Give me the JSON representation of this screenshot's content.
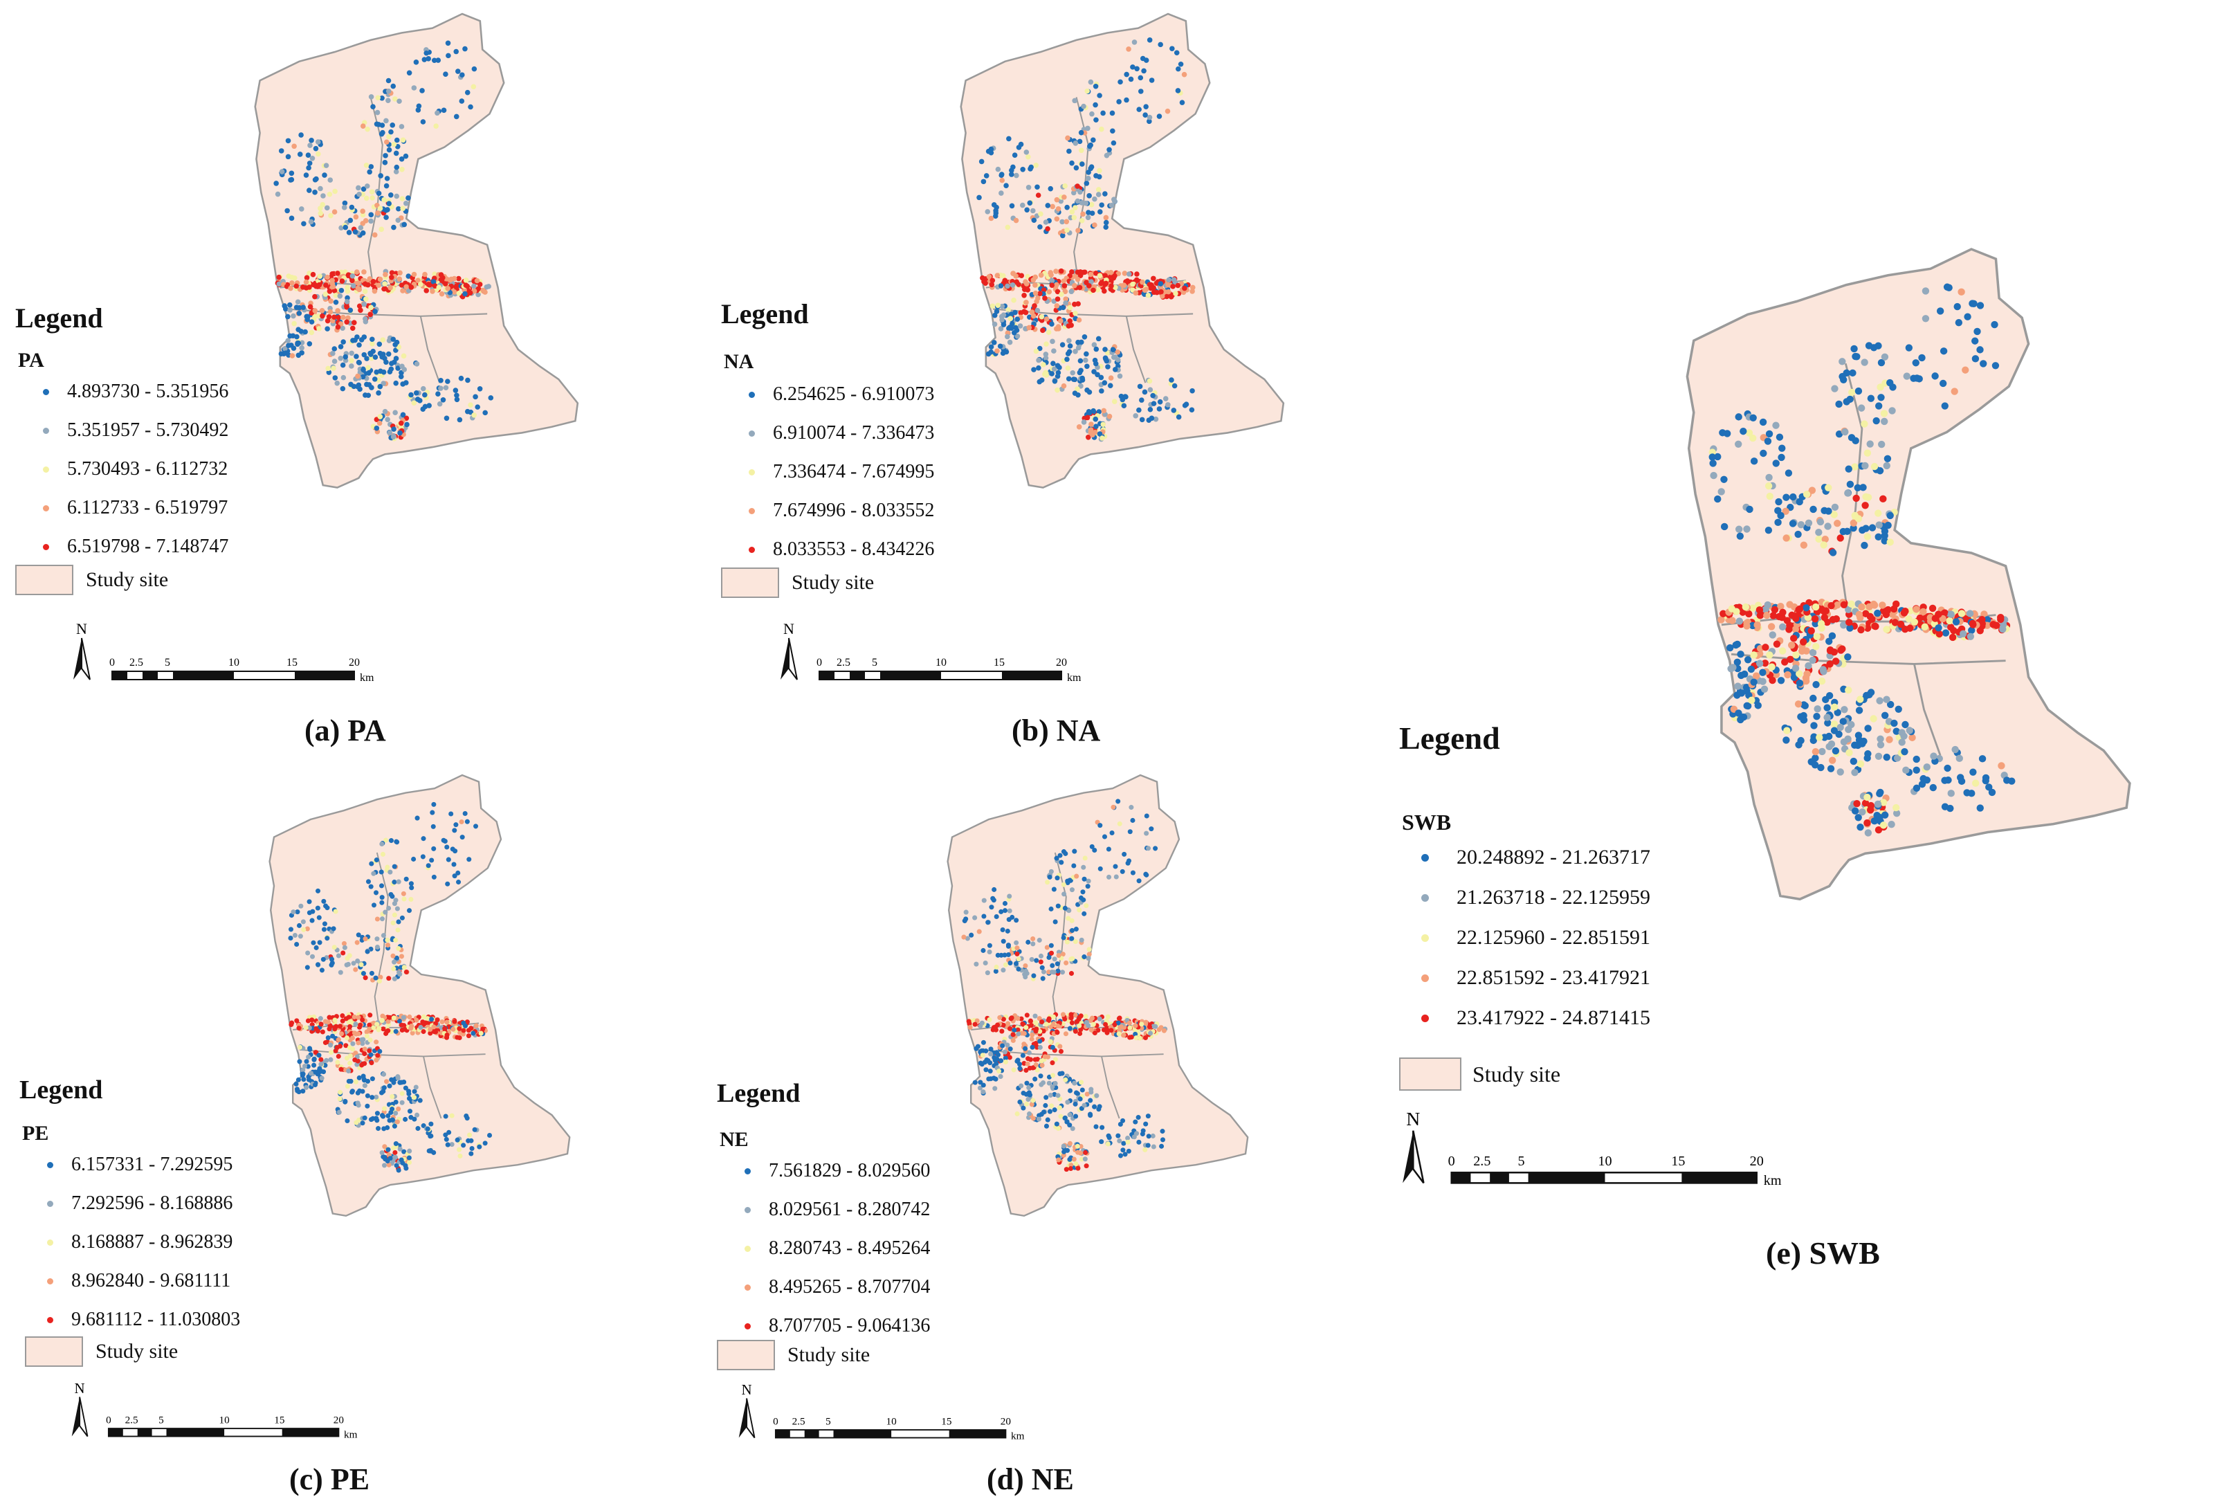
{
  "site_label": "Study site",
  "legend_title": "Legend",
  "north_label": "N",
  "scale": {
    "ticks": [
      "0",
      "2.5",
      "5",
      "10",
      "15",
      "20"
    ],
    "unit": "km"
  },
  "colors": {
    "site_fill": "#fbe6dc",
    "site_outline": "#9a9a9a",
    "class": [
      "#1f6fb8",
      "#93a9bc",
      "#f4f1a4",
      "#f4a07a",
      "#e8231f"
    ]
  },
  "panels": [
    {
      "id": "a",
      "caption": "(a) PA",
      "variable": "PA",
      "classes": [
        "4.893730 - 5.351956",
        "5.351957 - 5.730492",
        "5.730493 - 6.112732",
        "6.112733 - 6.519797",
        "6.519798 - 7.148747"
      ]
    },
    {
      "id": "b",
      "caption": "(b) NA",
      "variable": "NA",
      "classes": [
        "6.254625 - 6.910073",
        "6.910074 - 7.336473",
        "7.336474 - 7.674995",
        "7.674996 - 8.033552",
        "8.033553 - 8.434226"
      ]
    },
    {
      "id": "c",
      "caption": "(c) PE",
      "variable": "PE",
      "classes": [
        "6.157331 - 7.292595",
        "7.292596 - 8.168886",
        "8.168887 - 8.962839",
        "8.962840 - 9.681111",
        "9.681112 - 11.030803"
      ]
    },
    {
      "id": "d",
      "caption": "(d) NE",
      "variable": "NE",
      "classes": [
        "7.561829 - 8.029560",
        "8.029561 - 8.280742",
        "8.280743 - 8.495264",
        "8.495265 - 8.707704",
        "8.707705 - 9.064136"
      ]
    },
    {
      "id": "e",
      "caption": "(e) SWB",
      "variable": "SWB",
      "classes": [
        "20.248892 - 21.263717",
        "21.263718 - 22.125959",
        "22.125960 - 22.851591",
        "22.851592 - 23.417921",
        "23.417922 - 24.871415"
      ]
    }
  ]
}
